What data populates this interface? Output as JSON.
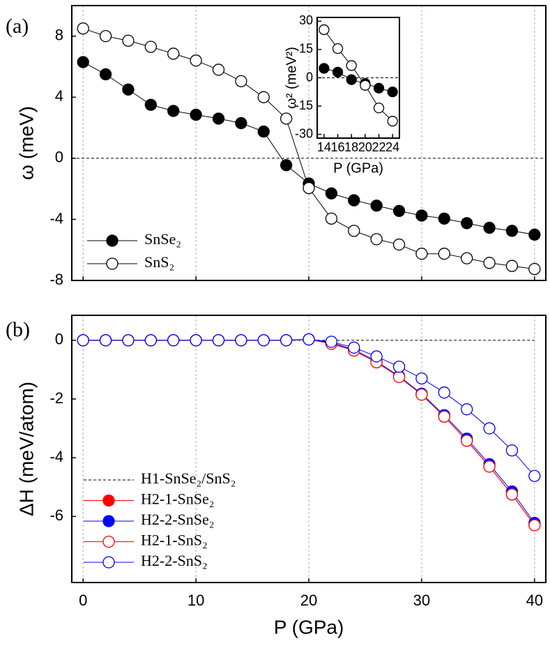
{
  "chart_data": [
    {
      "type": "line",
      "annotation": "(a)",
      "ylabel": "ω (meV)",
      "x": [
        0,
        2,
        4,
        6,
        8,
        10,
        12,
        14,
        16,
        18,
        20,
        22,
        24,
        26,
        28,
        30,
        32,
        34,
        36,
        38,
        40
      ],
      "series": [
        {
          "name": "SnSe₂",
          "color": "#000000",
          "marker": "filled",
          "values": [
            6.3,
            5.5,
            4.5,
            3.5,
            3.1,
            2.85,
            2.6,
            2.3,
            1.75,
            -0.45,
            -1.65,
            -2.3,
            -2.75,
            -3.1,
            -3.45,
            -3.75,
            -3.95,
            -4.25,
            -4.55,
            -4.75,
            -5.0
          ]
        },
        {
          "name": "SnS₂",
          "color": "#000000",
          "marker": "open",
          "values": [
            8.5,
            8.0,
            7.7,
            7.3,
            6.85,
            6.4,
            5.8,
            5.05,
            4.0,
            2.6,
            -1.95,
            -3.95,
            -4.75,
            -5.3,
            -5.65,
            -6.25,
            -6.25,
            -6.55,
            -6.85,
            -7.05,
            -7.25
          ]
        }
      ],
      "xlim": [
        -1,
        41
      ],
      "xticks": [
        0,
        10,
        20,
        30,
        40
      ],
      "x_tick_labels": false,
      "ylim": [
        -8,
        10
      ],
      "yticks": [
        -8,
        -4,
        0,
        4,
        8
      ],
      "grid": true,
      "zero_line": true,
      "legend": "lower left"
    },
    {
      "type": "line",
      "xlabel": "P (GPa)",
      "ylabel": "ω² (meV²)",
      "x": [
        14,
        16,
        18,
        20,
        22,
        24
      ],
      "series": [
        {
          "name": "SnSe₂",
          "color": "#000000",
          "marker": "filled",
          "values": [
            5,
            3,
            -1,
            -3,
            -5.5,
            -7.5
          ]
        },
        {
          "name": "SnS₂",
          "color": "#000000",
          "marker": "open",
          "values": [
            25.5,
            15.5,
            6.5,
            -4,
            -16,
            -23
          ]
        }
      ],
      "xlim": [
        13,
        25
      ],
      "xticks": [
        14,
        16,
        18,
        20,
        22,
        24
      ],
      "x_tick_labels": true,
      "ylim": [
        -32,
        32
      ],
      "yticks": [
        -30,
        -15,
        0,
        15,
        30
      ],
      "grid": false,
      "zero_line": true,
      "legend": "none"
    },
    {
      "type": "line",
      "annotation": "(b)",
      "xlabel": "P (GPa)",
      "ylabel": "ΔH (meV/atom)",
      "x": [
        0,
        2,
        4,
        6,
        8,
        10,
        12,
        14,
        16,
        18,
        20,
        22,
        24,
        26,
        28,
        30,
        32,
        34,
        36,
        38,
        40
      ],
      "series": [
        {
          "name": "H1-SnSe₂/SnS₂",
          "color": "#000000",
          "marker": "none",
          "dashed": true,
          "values": [
            0,
            0,
            0,
            0,
            0,
            0,
            0,
            0,
            0,
            0,
            0,
            0,
            0,
            0,
            0,
            0,
            0,
            0,
            0,
            0,
            0
          ]
        },
        {
          "name": "H2-1-SnSe₂",
          "color": "#ff0000",
          "marker": "filled",
          "values": [
            0,
            0,
            0,
            0,
            0,
            0,
            0,
            0,
            0,
            0,
            0.03,
            -0.1,
            -0.35,
            -0.75,
            -1.25,
            -1.85,
            -2.6,
            -3.42,
            -4.3,
            -5.25,
            -6.3
          ]
        },
        {
          "name": "H2-2-SnSe₂",
          "color": "#0000ff",
          "marker": "filled",
          "values": [
            0,
            0,
            0,
            0,
            0,
            0,
            0,
            0,
            0,
            0,
            0.03,
            -0.08,
            -0.32,
            -0.72,
            -1.22,
            -1.82,
            -2.55,
            -3.35,
            -4.22,
            -5.15,
            -6.22
          ]
        },
        {
          "name": "H2-1-SnS₂",
          "color": "#ff0000",
          "marker": "open",
          "values": [
            0,
            0,
            0,
            0,
            0,
            0,
            0,
            0,
            0,
            0,
            0.03,
            -0.12,
            -0.35,
            -0.75,
            -1.25,
            -1.85,
            -2.6,
            -3.42,
            -4.3,
            -5.25,
            -6.3
          ]
        },
        {
          "name": "H2-2-SnS₂",
          "color": "#0000ff",
          "marker": "open",
          "values": [
            0,
            0,
            0,
            0,
            0,
            0,
            0,
            0,
            0,
            0,
            0.03,
            -0.05,
            -0.25,
            -0.55,
            -0.9,
            -1.3,
            -1.78,
            -2.35,
            -3.0,
            -3.75,
            -4.62
          ]
        }
      ],
      "xlim": [
        -1,
        41
      ],
      "xticks": [
        0,
        10,
        20,
        30,
        40
      ],
      "x_tick_labels": true,
      "ylim": [
        -8.25,
        0.85
      ],
      "yticks": [
        -6,
        -4,
        -2,
        0
      ],
      "grid": true,
      "zero_line": false,
      "legend": "lower left"
    }
  ]
}
